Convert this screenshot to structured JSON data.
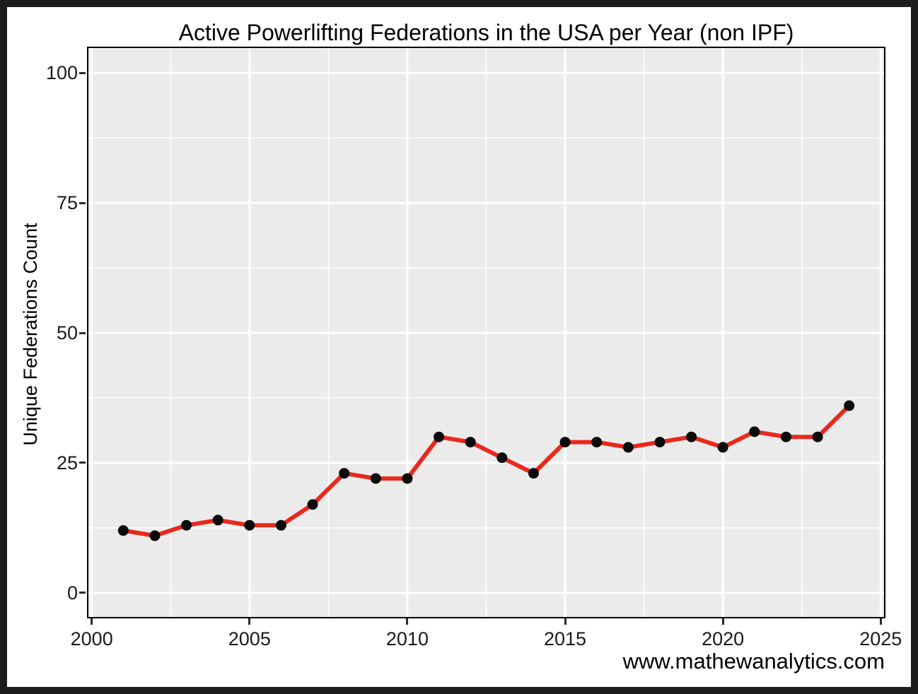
{
  "frame": {
    "border_color": "#1c1c1c",
    "background": "#ffffff"
  },
  "title": "Active Powerlifting Federations in the USA per Year (non IPF)",
  "caption": "www.mathewanalytics.com",
  "chart_data": {
    "type": "line",
    "title": "Active Powerlifting Federations in the USA per Year (non IPF)",
    "xlabel": "",
    "ylabel": "Unique Federations Count",
    "caption": "www.mathewanalytics.com",
    "x": [
      2001,
      2002,
      2003,
      2004,
      2005,
      2006,
      2007,
      2008,
      2009,
      2010,
      2011,
      2012,
      2013,
      2014,
      2015,
      2016,
      2017,
      2018,
      2019,
      2020,
      2021,
      2022,
      2023,
      2024
    ],
    "values": [
      12,
      11,
      13,
      14,
      13,
      13,
      17,
      23,
      22,
      22,
      30,
      29,
      26,
      23,
      29,
      29,
      28,
      29,
      30,
      28,
      31,
      30,
      30,
      36
    ],
    "xlim": [
      1999.85,
      2025.15
    ],
    "ylim": [
      -4.9,
      105.05
    ],
    "x_ticks": [
      2000,
      2005,
      2010,
      2015,
      2020,
      2025
    ],
    "y_ticks": [
      0,
      25,
      50,
      75,
      100
    ],
    "x_minor_ticks": [
      2002.5,
      2007.5,
      2012.5,
      2017.5,
      2022.5
    ],
    "y_minor_ticks": [
      12.5,
      37.5,
      62.5,
      87.5
    ],
    "grid": true,
    "legend": "none",
    "panel_background": "#EBEBEB",
    "grid_color": "#FFFFFF",
    "line_color": "#E8291D",
    "point_color": "#0a0a0a"
  }
}
